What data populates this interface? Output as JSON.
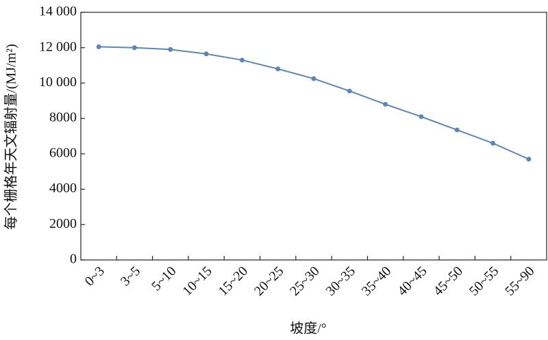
{
  "chart_data": {
    "type": "line",
    "x_label": "坡度/°",
    "y_label": "每个栅格年天文辐射量/(MJ/m²)",
    "categories": [
      "0~3",
      "3~5",
      "5~10",
      "10~15",
      "15~20",
      "20~25",
      "25~30",
      "30~35",
      "35~40",
      "40~45",
      "45~50",
      "50~55",
      "55~90"
    ],
    "values": [
      12050,
      12000,
      11900,
      11650,
      11300,
      10800,
      10250,
      9550,
      8800,
      8100,
      7350,
      6600,
      5700
    ],
    "color": "#5b87b5",
    "ylim": [
      0,
      14000
    ],
    "yticks": [
      0,
      2000,
      4000,
      6000,
      8000,
      {
        "value": 10000,
        "label": "10 000"
      },
      {
        "value": 12000,
        "label": "12 000"
      },
      {
        "value": 14000,
        "label": "14 000"
      }
    ]
  }
}
